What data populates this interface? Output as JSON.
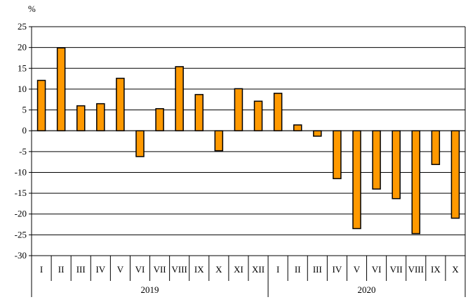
{
  "chart_data": {
    "type": "bar",
    "ylabel": "%",
    "ylim": [
      -30,
      25
    ],
    "yticks": [
      25,
      20,
      15,
      10,
      5,
      0,
      -5,
      -10,
      -15,
      -20,
      -25,
      -30
    ],
    "grid": true,
    "bar_color": "#ff9900",
    "bar_edge_color": "#000000",
    "categories": [
      "I",
      "II",
      "III",
      "IV",
      "V",
      "VI",
      "VII",
      "VIII",
      "IX",
      "X",
      "XI",
      "XII",
      "I",
      "II",
      "III",
      "IV",
      "V",
      "VI",
      "VII",
      "VIII",
      "IX",
      "X"
    ],
    "values": [
      12.1,
      19.9,
      6.0,
      6.5,
      12.6,
      -6.2,
      5.3,
      15.4,
      8.7,
      -4.8,
      10.1,
      7.1,
      9.0,
      1.4,
      -1.3,
      -11.5,
      -23.5,
      -14.0,
      -16.3,
      -24.7,
      -8.1,
      -21.0
    ],
    "groups": [
      {
        "label": "2019",
        "count": 12
      },
      {
        "label": "2020",
        "count": 10
      }
    ]
  }
}
